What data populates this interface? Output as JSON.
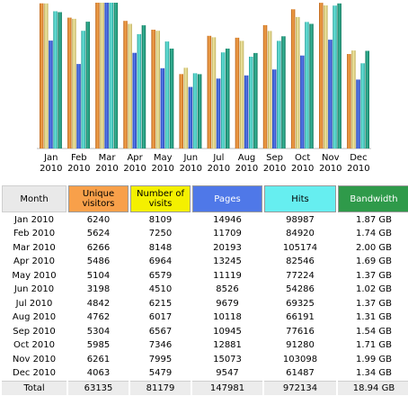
{
  "months": [
    {
      "month": "Jan",
      "year": "2010",
      "label": "Jan 2010"
    },
    {
      "month": "Feb",
      "year": "2010",
      "label": "Feb 2010"
    },
    {
      "month": "Mar",
      "year": "2010",
      "label": "Mar 2010"
    },
    {
      "month": "Apr",
      "year": "2010",
      "label": "Apr 2010"
    },
    {
      "month": "May",
      "year": "2010",
      "label": "May 2010"
    },
    {
      "month": "Jun",
      "year": "2010",
      "label": "Jun 2010"
    },
    {
      "month": "Jul",
      "year": "2010",
      "label": "Jul 2010"
    },
    {
      "month": "Aug",
      "year": "2010",
      "label": "Aug 2010"
    },
    {
      "month": "Sep",
      "year": "2010",
      "label": "Sep 2010"
    },
    {
      "month": "Oct",
      "year": "2010",
      "label": "Oct 2010"
    },
    {
      "month": "Nov",
      "year": "2010",
      "label": "Nov 2010"
    },
    {
      "month": "Dec",
      "year": "2010",
      "label": "Dec 2010"
    }
  ],
  "table": {
    "headers": {
      "month": "Month",
      "unique": "Unique visitors",
      "visits": "Number of visits",
      "pages": "Pages",
      "hits": "Hits",
      "bandwidth": "Bandwidth"
    },
    "header_colors": {
      "unique": "#f8a04a",
      "visits": "#f4f000",
      "pages": "#4f78e8",
      "hits": "#66eef0",
      "bandwidth": "#2f9a4a"
    },
    "rows": [
      {
        "unique": "6240",
        "visits": "8109",
        "pages": "14946",
        "hits": "98987",
        "bandwidth": "1.87 GB"
      },
      {
        "unique": "5624",
        "visits": "7250",
        "pages": "11709",
        "hits": "84920",
        "bandwidth": "1.74 GB"
      },
      {
        "unique": "6266",
        "visits": "8148",
        "pages": "20193",
        "hits": "105174",
        "bandwidth": "2.00 GB"
      },
      {
        "unique": "5486",
        "visits": "6964",
        "pages": "13245",
        "hits": "82546",
        "bandwidth": "1.69 GB"
      },
      {
        "unique": "5104",
        "visits": "6579",
        "pages": "11119",
        "hits": "77224",
        "bandwidth": "1.37 GB"
      },
      {
        "unique": "3198",
        "visits": "4510",
        "pages": "8526",
        "hits": "54286",
        "bandwidth": "1.02 GB"
      },
      {
        "unique": "4842",
        "visits": "6215",
        "pages": "9679",
        "hits": "69325",
        "bandwidth": "1.37 GB"
      },
      {
        "unique": "4762",
        "visits": "6017",
        "pages": "10118",
        "hits": "66191",
        "bandwidth": "1.31 GB"
      },
      {
        "unique": "5304",
        "visits": "6567",
        "pages": "10945",
        "hits": "77616",
        "bandwidth": "1.54 GB"
      },
      {
        "unique": "5985",
        "visits": "7346",
        "pages": "12881",
        "hits": "91280",
        "bandwidth": "1.71 GB"
      },
      {
        "unique": "6261",
        "visits": "7995",
        "pages": "15073",
        "hits": "103098",
        "bandwidth": "1.99 GB"
      },
      {
        "unique": "4063",
        "visits": "5479",
        "pages": "9547",
        "hits": "61487",
        "bandwidth": "1.34 GB"
      }
    ],
    "total": {
      "label": "Total",
      "unique": "63135",
      "visits": "81179",
      "pages": "147981",
      "hits": "972134",
      "bandwidth": "18.94 GB"
    }
  },
  "chart_data": {
    "type": "bar",
    "categories": [
      "Jan 2010",
      "Feb 2010",
      "Mar 2010",
      "Apr 2010",
      "May 2010",
      "Jun 2010",
      "Jul 2010",
      "Aug 2010",
      "Sep 2010",
      "Oct 2010",
      "Nov 2010",
      "Dec 2010"
    ],
    "title": "",
    "xlabel": "",
    "ylabel": "",
    "grid": false,
    "legend": "none",
    "note": "each series is drawn on its own independent scale (max value of each series reaches full height)",
    "series": [
      {
        "key": "unique",
        "color": "#e8902e",
        "values": [
          6240,
          5624,
          6266,
          5486,
          5104,
          3198,
          4842,
          4762,
          5304,
          5985,
          6261,
          4063
        ]
      },
      {
        "key": "visits",
        "color": "#e6da84",
        "values": [
          8109,
          7250,
          8148,
          6964,
          6579,
          4510,
          6215,
          6017,
          6567,
          7346,
          7995,
          5479
        ]
      },
      {
        "key": "pages",
        "color": "#3a5cd0",
        "values": [
          14946,
          11709,
          20193,
          13245,
          11119,
          8526,
          9679,
          10118,
          10945,
          12881,
          15073,
          9547
        ]
      },
      {
        "key": "hits",
        "color": "#3ec8c0",
        "values": [
          98987,
          84920,
          105174,
          82546,
          77224,
          54286,
          69325,
          66191,
          77616,
          91280,
          103098,
          61487
        ]
      },
      {
        "key": "bandwidth",
        "color": "#1f9880",
        "values": [
          1.87,
          1.74,
          2.0,
          1.69,
          1.37,
          1.02,
          1.37,
          1.31,
          1.54,
          1.71,
          1.99,
          1.34
        ]
      }
    ]
  }
}
